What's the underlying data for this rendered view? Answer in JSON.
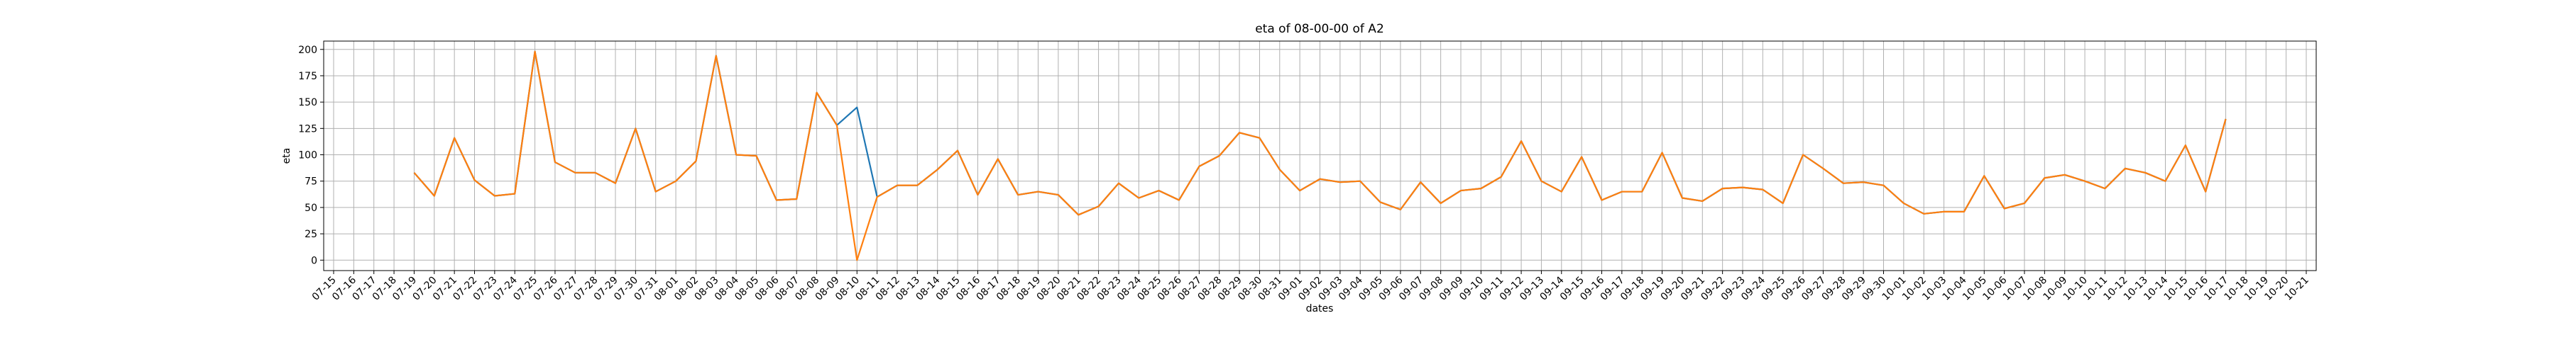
{
  "chart_data": {
    "type": "line",
    "title": "eta of 08-00-00 of A2",
    "x_label": "dates",
    "y_label": "eta",
    "categories": [
      "07-15",
      "07-16",
      "07-17",
      "07-18",
      "07-19",
      "07-20",
      "07-21",
      "07-22",
      "07-23",
      "07-24",
      "07-25",
      "07-26",
      "07-27",
      "07-28",
      "07-29",
      "07-30",
      "07-31",
      "08-01",
      "08-02",
      "08-03",
      "08-04",
      "08-05",
      "08-06",
      "08-07",
      "08-08",
      "08-09",
      "08-10",
      "08-11",
      "08-12",
      "08-13",
      "08-14",
      "08-15",
      "08-16",
      "08-17",
      "08-18",
      "08-19",
      "08-20",
      "08-21",
      "08-22",
      "08-23",
      "08-24",
      "08-25",
      "08-26",
      "08-27",
      "08-28",
      "08-29",
      "08-30",
      "08-31",
      "09-01",
      "09-02",
      "09-03",
      "09-04",
      "09-05",
      "09-06",
      "09-07",
      "09-08",
      "09-09",
      "09-10",
      "09-11",
      "09-12",
      "09-13",
      "09-14",
      "09-15",
      "09-16",
      "09-17",
      "09-18",
      "09-19",
      "09-20",
      "09-21",
      "09-22",
      "09-23",
      "09-24",
      "09-25",
      "09-26",
      "09-27",
      "09-28",
      "09-29",
      "09-30",
      "10-01",
      "10-02",
      "10-03",
      "10-04",
      "10-05",
      "10-06",
      "10-07",
      "10-08",
      "10-09",
      "10-10",
      "10-11",
      "10-12",
      "10-13",
      "10-14",
      "10-15",
      "10-16",
      "10-17",
      "10-18",
      "10-19",
      "10-20",
      "10-21"
    ],
    "series": [
      {
        "color": "#1f77b4",
        "values": [
          null,
          null,
          null,
          null,
          83,
          61,
          116,
          76,
          61,
          63,
          198,
          93,
          83,
          83,
          73,
          125,
          65,
          75,
          94,
          194,
          100,
          99,
          57,
          58,
          159,
          128,
          145,
          60,
          71,
          71,
          86,
          104,
          62,
          96,
          62,
          65,
          62,
          43,
          51,
          73,
          59,
          66,
          57,
          89,
          99,
          121,
          116,
          86,
          66,
          77,
          74,
          75,
          55,
          48,
          74,
          54,
          66,
          68,
          79,
          113,
          75,
          65,
          98,
          57,
          65,
          65,
          102,
          59,
          56,
          68,
          69,
          67,
          54,
          100,
          87,
          73,
          74,
          71,
          54,
          44,
          46,
          46,
          80,
          49,
          54,
          78,
          81,
          75,
          68,
          87,
          83,
          75,
          109,
          65,
          134,
          null,
          null,
          null,
          null
        ]
      },
      {
        "color": "#ff7f0e",
        "values": [
          null,
          null,
          null,
          null,
          83,
          61,
          116,
          76,
          61,
          63,
          198,
          93,
          83,
          83,
          73,
          125,
          65,
          75,
          94,
          194,
          100,
          99,
          57,
          58,
          159,
          128,
          0,
          60,
          71,
          71,
          86,
          104,
          62,
          96,
          62,
          65,
          62,
          43,
          51,
          73,
          59,
          66,
          57,
          89,
          99,
          121,
          116,
          86,
          66,
          77,
          74,
          75,
          55,
          48,
          74,
          54,
          66,
          68,
          79,
          113,
          75,
          65,
          98,
          57,
          65,
          65,
          102,
          59,
          56,
          68,
          69,
          67,
          54,
          100,
          87,
          73,
          74,
          71,
          54,
          44,
          46,
          46,
          80,
          49,
          54,
          78,
          81,
          75,
          68,
          87,
          83,
          75,
          109,
          65,
          134,
          null,
          null,
          null,
          null
        ]
      }
    ],
    "ylim": [
      -9.9,
      207.9
    ],
    "yticks": [
      0,
      25,
      50,
      75,
      100,
      125,
      150,
      175,
      200
    ],
    "grid": true
  }
}
